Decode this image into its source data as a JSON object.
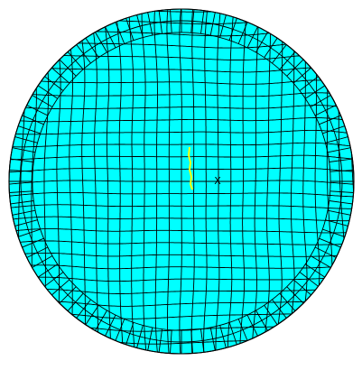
{
  "viewport": {
    "background_color": "#ffffff"
  },
  "mesh": {
    "element_type": "quadrilateral",
    "shape": "circle",
    "fill_color": "#00ffff",
    "line_color": "#000000",
    "highlight_color": "#ffff00"
  },
  "markers": {
    "center_marker_glyph": "X",
    "highlighted_segment": "selected-edge"
  }
}
